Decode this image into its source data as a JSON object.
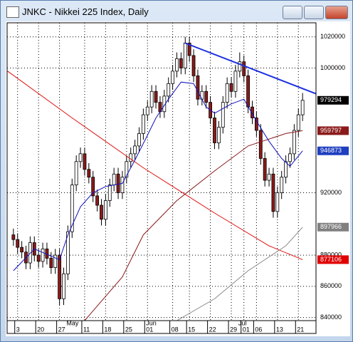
{
  "window_title": "JNKC - Nikkei 225 Index, Daily",
  "chart_data": {
    "type": "candlestick",
    "xlim": [
      -1.5,
      72.2
    ],
    "ylim": [
      838000,
      1029000
    ],
    "yticks": [
      840000,
      860000,
      880000,
      920000,
      1000000,
      1020000
    ],
    "grid": true,
    "xticks": [
      {
        "value": 1,
        "label": "3"
      },
      {
        "value": 6,
        "label": "20"
      },
      {
        "value": 11,
        "label": "27"
      },
      {
        "value": 17,
        "label": "11"
      },
      {
        "value": 22,
        "label": "18"
      },
      {
        "value": 27,
        "label": "25"
      },
      {
        "value": 32,
        "label": "01"
      },
      {
        "value": 38,
        "label": "08"
      },
      {
        "value": 42,
        "label": "15"
      },
      {
        "value": 47,
        "label": "22"
      },
      {
        "value": 52,
        "label": "29"
      },
      {
        "value": 55,
        "label": "01"
      },
      {
        "value": 58,
        "label": "06"
      },
      {
        "value": 63,
        "label": "13"
      },
      {
        "value": 68,
        "label": "21"
      }
    ],
    "months": [
      {
        "value": 13,
        "label": "May"
      },
      {
        "value": 32,
        "label": "Jun"
      },
      {
        "value": 54,
        "label": "Jul"
      }
    ],
    "up_color": "#ffffff",
    "down_color": "#8b1a1a",
    "open": [
      893000,
      890000,
      885000,
      882000,
      875000,
      888000,
      880000,
      876000,
      884000,
      878000,
      872000,
      880000,
      852000,
      868000,
      895000,
      925000,
      940000,
      945000,
      935000,
      930000,
      918000,
      912000,
      903000,
      915000,
      925000,
      932000,
      920000,
      930000,
      940000,
      945000,
      950000,
      958000,
      970000,
      975000,
      985000,
      978000,
      972000,
      982000,
      990000,
      998000,
      1006000,
      1000000,
      1016000,
      1008000,
      995000,
      980000,
      985000,
      978000,
      968000,
      952000,
      962000,
      978000,
      990000,
      985000,
      998000,
      1004000,
      995000,
      975000,
      968000,
      960000,
      942000,
      928000,
      932000,
      908000,
      920000,
      930000,
      940000,
      945000,
      960000,
      970000
    ],
    "high": [
      897000,
      894000,
      889000,
      886000,
      892000,
      892000,
      884000,
      888000,
      888000,
      882000,
      884000,
      884000,
      872000,
      899000,
      929000,
      944000,
      949000,
      949000,
      939000,
      934000,
      922000,
      916000,
      919000,
      929000,
      936000,
      936000,
      934000,
      944000,
      949000,
      954000,
      962000,
      974000,
      979000,
      989000,
      989000,
      982000,
      986000,
      994000,
      1002000,
      1010000,
      1010000,
      1020000,
      1020000,
      1012000,
      999000,
      989000,
      989000,
      982000,
      972000,
      966000,
      982000,
      994000,
      994000,
      1002000,
      1010000,
      1008000,
      999000,
      979000,
      972000,
      964000,
      946000,
      936000,
      936000,
      924000,
      934000,
      944000,
      949000,
      964000,
      974000,
      984000
    ],
    "low": [
      886000,
      881000,
      878000,
      871000,
      871000,
      876000,
      872000,
      872000,
      874000,
      868000,
      868000,
      848000,
      848000,
      864000,
      891000,
      921000,
      936000,
      931000,
      926000,
      914000,
      908000,
      899000,
      899000,
      911000,
      921000,
      916000,
      916000,
      926000,
      936000,
      941000,
      946000,
      954000,
      966000,
      971000,
      974000,
      968000,
      968000,
      978000,
      986000,
      994000,
      996000,
      996000,
      1004000,
      991000,
      976000,
      976000,
      974000,
      964000,
      948000,
      948000,
      958000,
      974000,
      981000,
      981000,
      994000,
      991000,
      971000,
      964000,
      956000,
      938000,
      924000,
      924000,
      904000,
      904000,
      916000,
      926000,
      936000,
      941000,
      956000,
      966000
    ],
    "close": [
      890000,
      885000,
      882000,
      875000,
      888000,
      880000,
      876000,
      884000,
      878000,
      872000,
      880000,
      852000,
      868000,
      895000,
      925000,
      940000,
      945000,
      935000,
      930000,
      918000,
      912000,
      903000,
      915000,
      925000,
      932000,
      920000,
      930000,
      940000,
      945000,
      950000,
      958000,
      970000,
      975000,
      985000,
      978000,
      972000,
      982000,
      990000,
      998000,
      1006000,
      1000000,
      1016000,
      1008000,
      995000,
      980000,
      985000,
      978000,
      968000,
      952000,
      962000,
      978000,
      990000,
      985000,
      998000,
      1004000,
      995000,
      975000,
      968000,
      960000,
      942000,
      928000,
      932000,
      908000,
      920000,
      930000,
      940000,
      945000,
      960000,
      970000,
      979294
    ],
    "lines": [
      {
        "color": "#e01010",
        "x": [
          -1.4,
          14,
          31,
          48,
          61,
          69
        ],
        "values": [
          998000,
          968000,
          936000,
          907000,
          886000,
          877106
        ]
      },
      {
        "color": "#8b1a1a",
        "x": [
          17,
          26,
          31,
          39,
          48,
          56,
          65,
          69
        ],
        "values": [
          838000,
          866000,
          893000,
          915000,
          934000,
          950000,
          958000,
          959797
        ]
      },
      {
        "color": "#8a8a8a",
        "x": [
          39,
          48,
          56,
          65,
          69
        ],
        "values": [
          838000,
          852000,
          870000,
          886000,
          897966
        ]
      },
      {
        "color": "#1010c0",
        "x": [
          0,
          5,
          11,
          13,
          16,
          19,
          22,
          26,
          29,
          32,
          34,
          37,
          40,
          43,
          46,
          48,
          52,
          55,
          58,
          61,
          64,
          66,
          69
        ],
        "values": [
          870000,
          884000,
          877000,
          893000,
          911000,
          920000,
          924000,
          926000,
          941000,
          957000,
          968000,
          980000,
          991000,
          990000,
          975000,
          971000,
          977000,
          980000,
          966000,
          953000,
          942000,
          937000,
          946873
        ]
      },
      {
        "color": "#1a2fe0",
        "width": 2,
        "x": [
          41,
          72.2
        ],
        "values": [
          1016000,
          983500
        ]
      }
    ],
    "price_labels": [
      {
        "value": 979294,
        "color": "#000000"
      },
      {
        "value": 959797,
        "color": "#8b1a1a"
      },
      {
        "value": 946873,
        "color": "#1f3fbf"
      },
      {
        "value": 897966,
        "color": "#808080"
      },
      {
        "value": 877106,
        "color": "#e00000"
      }
    ]
  }
}
